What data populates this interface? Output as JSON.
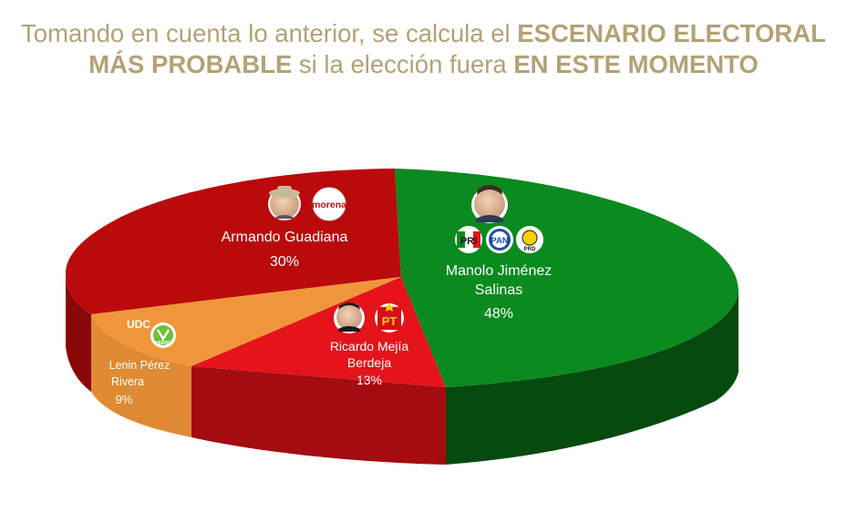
{
  "title": {
    "line1_prefix": "Tomando en cuenta lo anterior, se calcula el ",
    "line1_bold": "ESCENARIO ELECTORAL",
    "line2_bold_a": "MÁS PROBABLE",
    "line2_mid": " si la elección fuera ",
    "line2_bold_b": "EN ESTE MOMENTO"
  },
  "chart_data": {
    "type": "pie",
    "style": "3d",
    "slices": [
      {
        "name_lines": [
          "Manolo Jiménez",
          "Salinas"
        ],
        "value": 48,
        "label": "48%",
        "color": "#0b8a1f",
        "side_color": "#064a10",
        "logos": [
          "PRI",
          "PAN",
          "PRD"
        ]
      },
      {
        "name_lines": [
          "Ricardo Mejía",
          "Berdeja"
        ],
        "value": 13,
        "label": "13%",
        "color": "#e5131a",
        "side_color": "#a30c10",
        "logos": [
          "PT"
        ]
      },
      {
        "name_lines": [
          "Lenin Pérez",
          "Rivera"
        ],
        "value": 9,
        "label": "9%",
        "color": "#f0963a",
        "side_color": "#e08a34",
        "logos": [
          "UDC",
          "VERDE"
        ]
      },
      {
        "name_lines": [
          "Armando Guadiana"
        ],
        "value": 30,
        "label": "30%",
        "color": "#bb0a0c",
        "side_color": "#8a0709",
        "logos": [
          "morena"
        ]
      }
    ]
  }
}
